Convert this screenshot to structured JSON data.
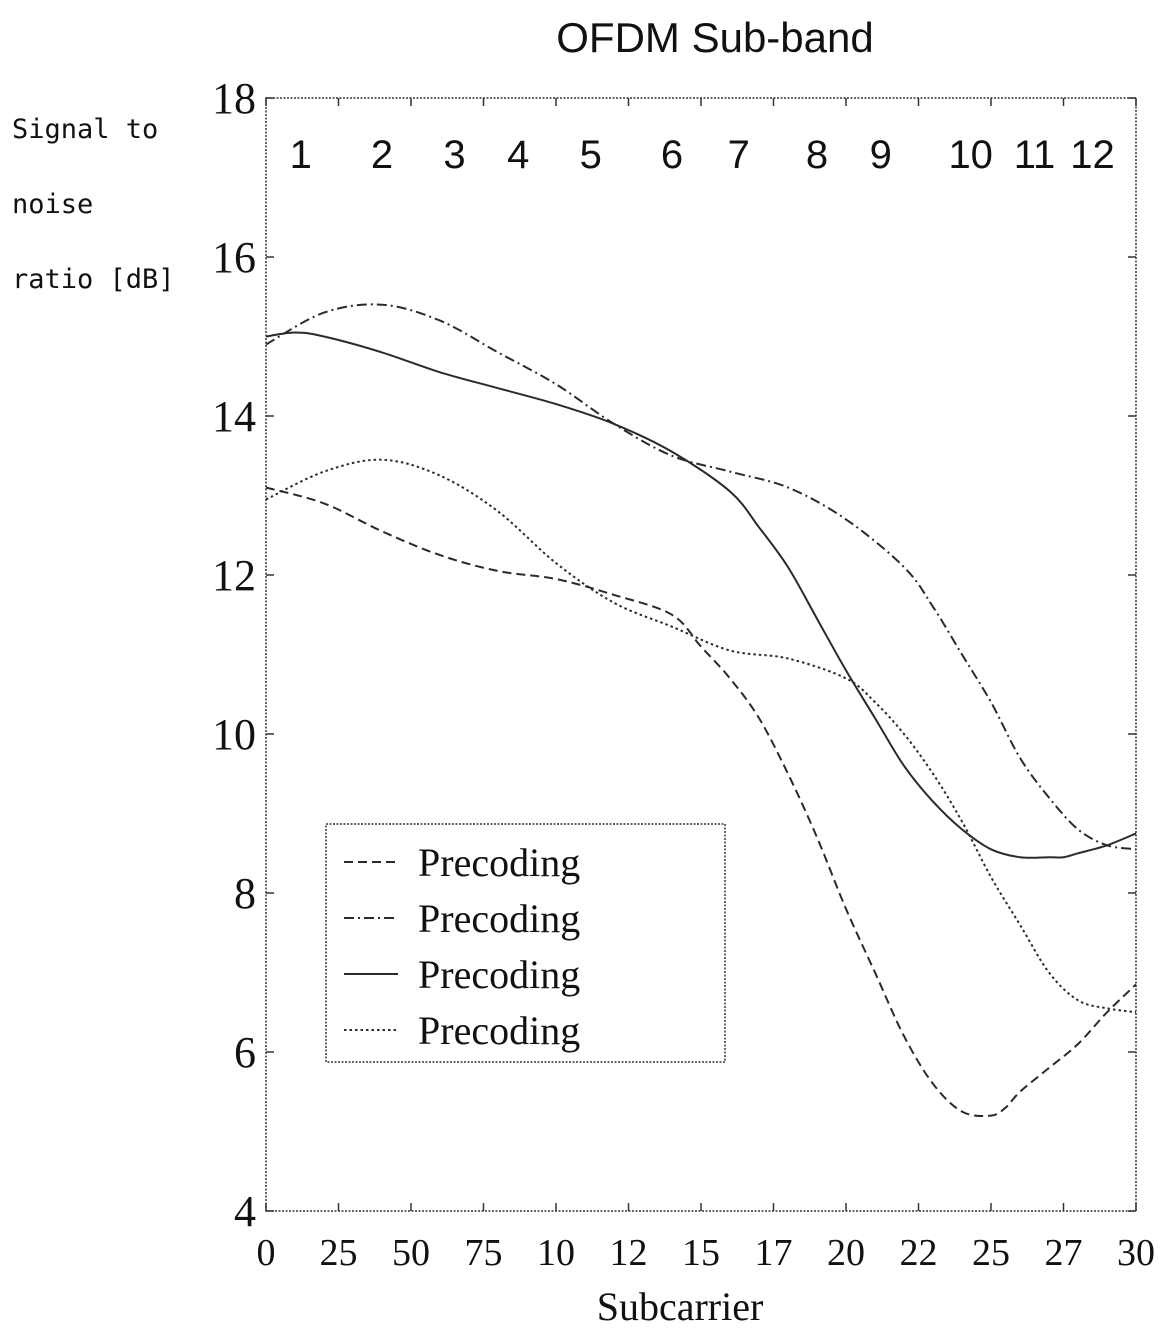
{
  "chart_data": {
    "type": "line",
    "title": "OFDM Sub-band",
    "ylabel": [
      "Signal to",
      "noise",
      "ratio [dB]"
    ],
    "xlabel": "Subcarrier",
    "ylim": [
      4,
      18
    ],
    "xlim": [
      0,
      300
    ],
    "x_ticks": [
      0,
      25,
      50,
      75,
      100,
      125,
      150,
      175,
      200,
      225,
      250,
      275,
      300
    ],
    "x_tick_labels": [
      "0",
      "25",
      "50",
      "75",
      "10",
      "12",
      "15",
      "17",
      "20",
      "22",
      "25",
      "27",
      "30"
    ],
    "y_ticks": [
      4,
      6,
      8,
      10,
      12,
      14,
      16,
      18
    ],
    "y_tick_labels": [
      "4",
      "6",
      "8",
      "10",
      "12",
      "14",
      "16",
      "18"
    ],
    "subbands": {
      "labels": [
        "1",
        "2",
        "3",
        "4",
        "5",
        "6",
        "7",
        "8",
        "9",
        "10",
        "11",
        "12"
      ],
      "label_x": [
        12,
        40,
        65,
        87,
        112,
        140,
        163,
        190,
        212,
        243,
        265,
        285
      ]
    },
    "grid": false,
    "legend_position": "lower-left",
    "series": [
      {
        "name": "Precoding",
        "style": "dashed",
        "x": [
          0,
          20,
          40,
          60,
          80,
          100,
          120,
          140,
          150,
          160,
          170,
          180,
          190,
          200,
          210,
          220,
          230,
          240,
          250,
          255,
          260,
          270,
          280,
          290,
          300
        ],
        "y": [
          13.1,
          12.9,
          12.55,
          12.25,
          12.05,
          11.95,
          11.75,
          11.5,
          11.1,
          10.7,
          10.2,
          9.5,
          8.7,
          7.8,
          7.0,
          6.2,
          5.6,
          5.25,
          5.2,
          5.3,
          5.5,
          5.8,
          6.1,
          6.5,
          6.85
        ]
      },
      {
        "name": "Precoding",
        "style": "dash-dot",
        "x": [
          0,
          20,
          40,
          60,
          80,
          100,
          120,
          140,
          160,
          180,
          200,
          220,
          230,
          240,
          250,
          260,
          270,
          280,
          290,
          300
        ],
        "y": [
          14.9,
          15.3,
          15.4,
          15.2,
          14.8,
          14.4,
          13.9,
          13.5,
          13.3,
          13.1,
          12.7,
          12.1,
          11.6,
          11.0,
          10.4,
          9.7,
          9.2,
          8.8,
          8.6,
          8.55
        ]
      },
      {
        "name": "Precoding",
        "style": "solid",
        "x": [
          0,
          10,
          20,
          40,
          60,
          80,
          100,
          120,
          140,
          160,
          170,
          180,
          190,
          200,
          210,
          220,
          230,
          240,
          250,
          260,
          270,
          275,
          280,
          290,
          300
        ],
        "y": [
          15.0,
          15.05,
          15.0,
          14.8,
          14.55,
          14.35,
          14.15,
          13.9,
          13.55,
          13.05,
          12.6,
          12.1,
          11.45,
          10.8,
          10.2,
          9.6,
          9.15,
          8.8,
          8.55,
          8.45,
          8.45,
          8.45,
          8.5,
          8.6,
          8.75
        ]
      },
      {
        "name": "Precoding",
        "style": "dotted",
        "x": [
          0,
          20,
          40,
          60,
          80,
          100,
          120,
          140,
          160,
          180,
          200,
          210,
          220,
          230,
          240,
          250,
          260,
          270,
          280,
          290,
          300
        ],
        "y": [
          12.95,
          13.3,
          13.45,
          13.25,
          12.8,
          12.15,
          11.65,
          11.35,
          11.05,
          10.95,
          10.7,
          10.4,
          10.0,
          9.5,
          8.9,
          8.2,
          7.6,
          7.0,
          6.65,
          6.55,
          6.5
        ]
      }
    ]
  }
}
